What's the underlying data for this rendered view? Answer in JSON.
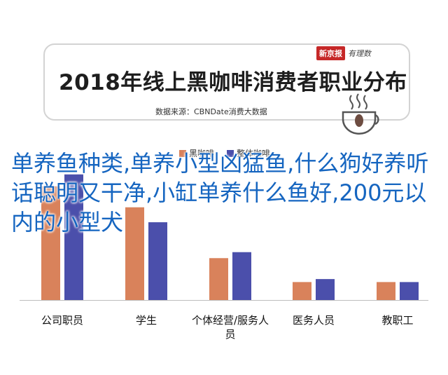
{
  "header": {
    "title": "2018年线上黑咖啡消费者职业分布",
    "source": "数据来源：CBNDate消费大数据",
    "brand_tag": "新京报",
    "brand_script": "有理数"
  },
  "overlay_text": "单养鱼种类,单养小型凶猛鱼,什么狗好养听话聪明又干净,小缸单养什么鱼好,200元以内的小型犬",
  "colors": {
    "series1": "#d9825b",
    "series2": "#4b4fab",
    "overlay": "#1565c0"
  },
  "chart_data": {
    "type": "bar",
    "categories": [
      "公司职员",
      "学生",
      "个体经营/服务人员",
      "医务人员",
      "教职工"
    ],
    "series": [
      {
        "name": "黑咖啡",
        "values": [
          38,
          31,
          14,
          6,
          6
        ]
      },
      {
        "name": "整体咖啡",
        "values": [
          42,
          26,
          16,
          7,
          6
        ]
      }
    ],
    "ylim": [
      0,
      45
    ]
  }
}
